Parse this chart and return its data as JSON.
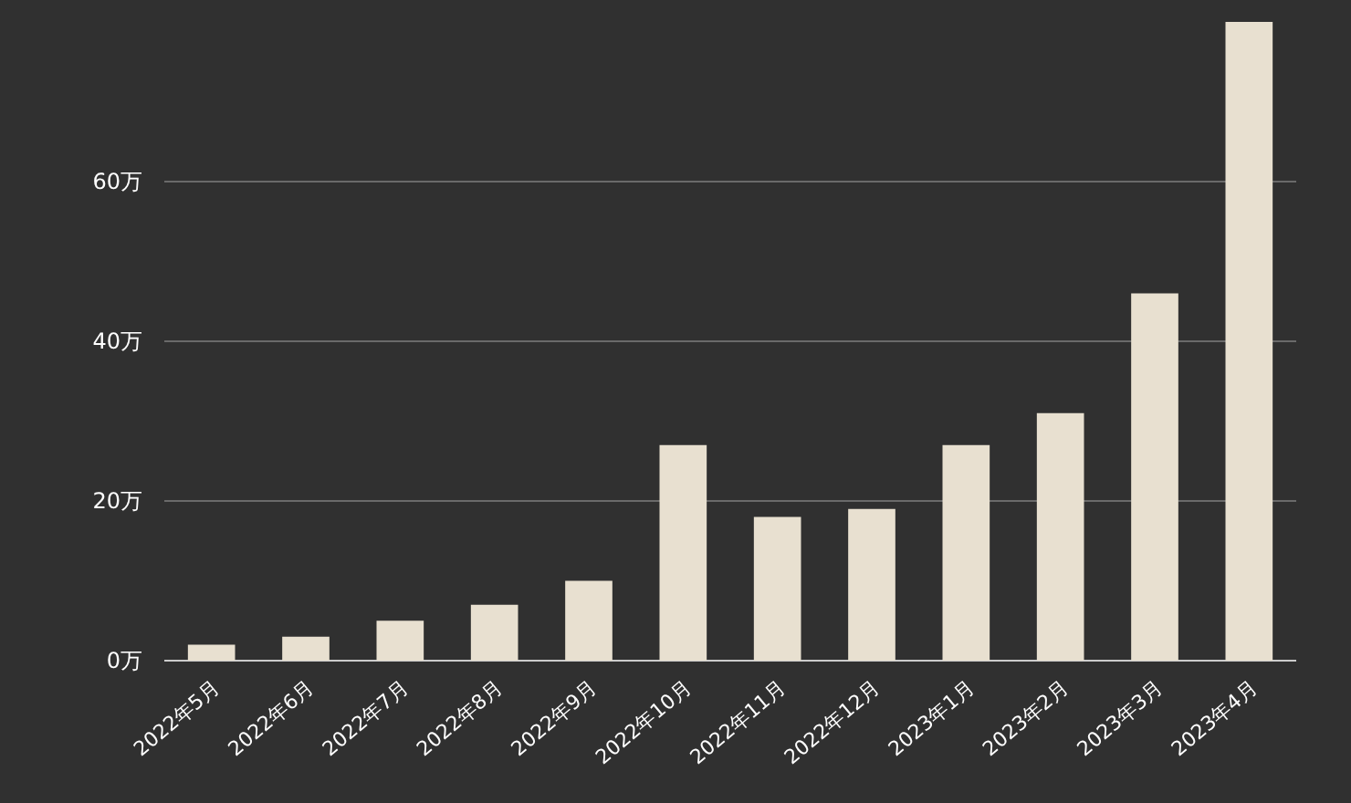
{
  "chart_data": {
    "type": "bar",
    "categories": [
      "2022年5月",
      "2022年6月",
      "2022年7月",
      "2022年8月",
      "2022年9月",
      "2022年10月",
      "2022年11月",
      "2022年12月",
      "2023年1月",
      "2023年2月",
      "2023年3月",
      "2023年4月"
    ],
    "values": [
      2,
      3,
      5,
      7,
      10,
      27,
      18,
      19,
      27,
      31,
      46,
      80
    ],
    "color": "#e8e0d0",
    "ylim": [
      0,
      80
    ],
    "yticks": [
      {
        "value": 0,
        "label": "0万"
      },
      {
        "value": 20,
        "label": "20万"
      },
      {
        "value": 40,
        "label": "40万"
      },
      {
        "value": 60,
        "label": "60万"
      }
    ],
    "grid": "y"
  }
}
